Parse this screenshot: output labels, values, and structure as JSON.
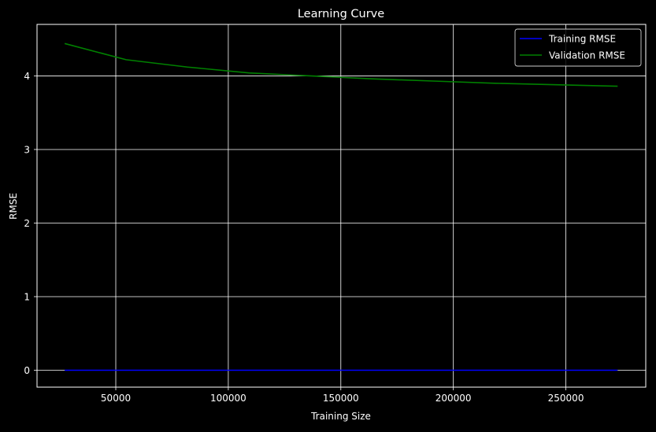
{
  "chart_data": {
    "type": "line",
    "title": "Learning Curve",
    "xlabel": "Training Size",
    "ylabel": "RMSE",
    "xlim": [
      15000,
      285500
    ],
    "ylim": [
      -0.23,
      4.7
    ],
    "xticks": [
      50000,
      100000,
      150000,
      200000,
      250000
    ],
    "xtick_labels": [
      "50000",
      "100000",
      "150000",
      "200000",
      "250000"
    ],
    "yticks": [
      0,
      1,
      2,
      3,
      4
    ],
    "ytick_labels": [
      "0",
      "1",
      "2",
      "3",
      "4"
    ],
    "grid": true,
    "legend_position": "top-right",
    "series": [
      {
        "name": "Training RMSE",
        "color": "#0000ff",
        "x": [
          27300,
          54600,
          81900,
          109200,
          136500,
          163800,
          191100,
          218400,
          245700,
          273000
        ],
        "y": [
          0,
          0,
          0,
          0,
          0,
          0,
          0,
          0,
          0,
          0
        ]
      },
      {
        "name": "Validation RMSE",
        "color": "#008000",
        "x": [
          27300,
          54600,
          81900,
          109200,
          136500,
          163800,
          191100,
          218400,
          245700,
          273000
        ],
        "y": [
          4.44,
          4.22,
          4.12,
          4.04,
          4.0,
          3.96,
          3.93,
          3.9,
          3.88,
          3.86
        ]
      }
    ]
  }
}
